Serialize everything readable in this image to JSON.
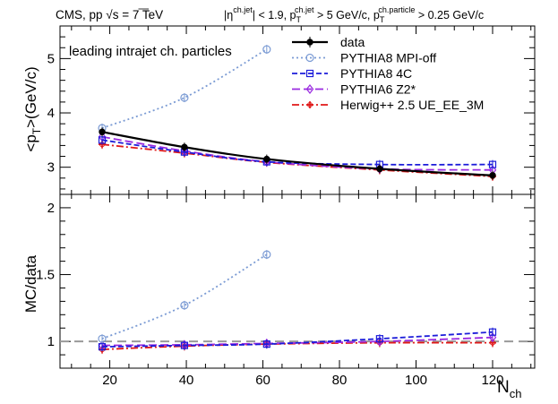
{
  "header": {
    "experiment": "CMS, pp",
    "energy_prefix": "√s",
    "energy_rest": " = 7 TeV",
    "cut_eta": "|η",
    "cut_eta_sup": "ch.jet",
    "cut_eta_rest": "| < 1.9, p",
    "cut_pt_sub": "T",
    "cut_pt_sup": "ch.jet",
    "cut_pt_rest": " > 5 GeV/c,  p",
    "cut_pt2_sub": "T",
    "cut_pt2_sup": "ch.particle",
    "cut_pt2_rest": " > 0.25 GeV/c"
  },
  "annotation": "leading intrajet ch. particles",
  "chart_data": [
    {
      "type": "line",
      "panel": "top",
      "ylabel_pre": "<p",
      "ylabel_sub": "T",
      "ylabel_post": ">(GeV/c)",
      "xlabel": "N",
      "xlabel_sub": "ch",
      "xlim": [
        7,
        131
      ],
      "ylim": [
        2.5,
        5.6
      ],
      "xticks": [
        20,
        40,
        60,
        80,
        100,
        120
      ],
      "yticks": [
        3,
        4,
        5
      ],
      "legend_position": "top-right",
      "series": [
        {
          "name": "data",
          "color": "#000000",
          "dash": "solid",
          "marker": "filled-circle",
          "x": [
            18,
            39.5,
            61,
            90.5,
            120
          ],
          "y": [
            3.65,
            3.37,
            3.15,
            2.97,
            2.85
          ]
        },
        {
          "name": "PYTHIA8 MPI-off",
          "color": "#7b9bd4",
          "dash": "dotted",
          "marker": "open-circle",
          "x": [
            18,
            39.5,
            61
          ],
          "y": [
            3.72,
            4.28,
            5.17
          ]
        },
        {
          "name": "PYTHIA8 4C",
          "color": "#1c1cd9",
          "dash": "dashed",
          "marker": "open-square",
          "x": [
            18,
            39.5,
            61,
            90.5,
            120
          ],
          "y": [
            3.5,
            3.28,
            3.1,
            3.05,
            3.05
          ]
        },
        {
          "name": "PYTHIA6 Z2*",
          "color": "#9a2be0",
          "dash": "longdash",
          "marker": "open-diamond",
          "x": [
            18,
            39.5,
            61,
            90.5,
            120
          ],
          "y": [
            3.56,
            3.3,
            3.1,
            2.97,
            2.95
          ]
        },
        {
          "name": "Herwig++ 2.5  UE_EE_3M",
          "color": "#e01818",
          "dash": "dashdot",
          "marker": "open-cross",
          "x": [
            18,
            39.5,
            61,
            90.5,
            120
          ],
          "y": [
            3.42,
            3.26,
            3.09,
            2.95,
            2.83
          ]
        }
      ]
    },
    {
      "type": "line",
      "panel": "bottom",
      "ylabel": "MC/data",
      "xlabel": "N",
      "xlabel_sub": "ch",
      "xlim": [
        7,
        131
      ],
      "ylim": [
        0.8,
        2.1
      ],
      "xticks": [
        20,
        40,
        60,
        80,
        100,
        120
      ],
      "yticks": [
        1,
        1.5,
        2
      ],
      "reference_line": 1,
      "series": [
        {
          "name": "PYTHIA8 MPI-off",
          "color": "#7b9bd4",
          "dash": "dotted",
          "marker": "open-circle",
          "x": [
            18,
            39.5,
            61
          ],
          "y": [
            1.02,
            1.27,
            1.65
          ]
        },
        {
          "name": "PYTHIA8 4C",
          "color": "#1c1cd9",
          "dash": "dashed",
          "marker": "open-square",
          "x": [
            18,
            39.5,
            61,
            90.5,
            120
          ],
          "y": [
            0.96,
            0.97,
            0.98,
            1.02,
            1.07
          ]
        },
        {
          "name": "PYTHIA6 Z2*",
          "color": "#9a2be0",
          "dash": "longdash",
          "marker": "open-diamond",
          "x": [
            18,
            39.5,
            61,
            90.5,
            120
          ],
          "y": [
            0.97,
            0.975,
            0.985,
            1.0,
            1.03
          ]
        },
        {
          "name": "Herwig++ 2.5  UE_EE_3M",
          "color": "#e01818",
          "dash": "dashdot",
          "marker": "open-cross",
          "x": [
            18,
            39.5,
            61,
            90.5,
            120
          ],
          "y": [
            0.94,
            0.965,
            0.98,
            0.99,
            0.99
          ]
        }
      ]
    }
  ]
}
